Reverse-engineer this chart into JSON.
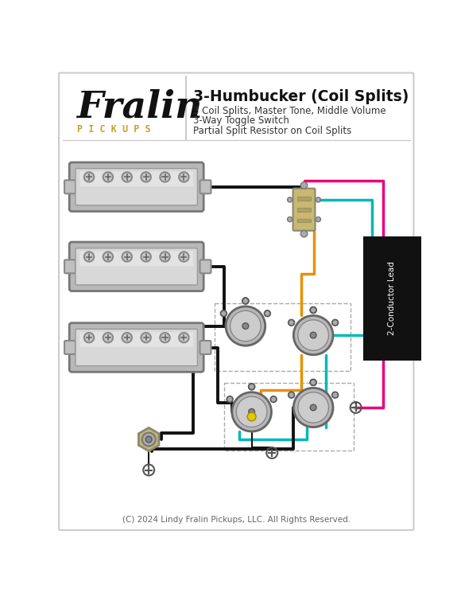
{
  "title": "3-Humbucker (Coil Splits)",
  "subtitle_lines": [
    "3 Coil Splits, Master Tone, Middle Volume",
    "3-Way Toggle Switch",
    "Partial Split Resistor on Coil Splits"
  ],
  "logo_text": "Fralin",
  "logo_sub": "P I C K U P S",
  "copyright": "(C) 2024 Lindy Fralin Pickups, LLC. All Rights Reserved.",
  "bg_color": "#ffffff",
  "wire_black": "#111111",
  "wire_pink": "#e8007a",
  "wire_teal": "#00b8b8",
  "wire_orange": "#e89000",
  "label_2conductor": "2-Conductor Lead"
}
